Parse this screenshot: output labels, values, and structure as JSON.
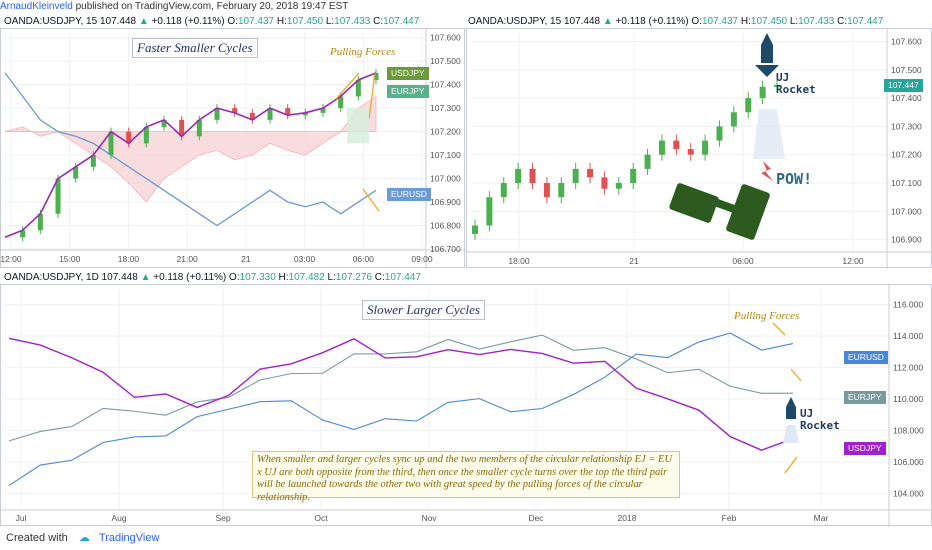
{
  "header": {
    "author": "ArnaudKleinveld",
    "published": "published on TradingView.com, February 20, 2018 19:47 EST"
  },
  "panel1": {
    "legend": {
      "symbol": "OANDA:USDJPY, 15",
      "last": "107.448",
      "change": "+0.118 (+0.11%)",
      "o": "107.437",
      "h": "107.450",
      "l": "107.433",
      "c": "107.447"
    },
    "title": "Faster Smaller Cycles",
    "forces": "Pulling Forces",
    "tags": [
      {
        "label": "USDJPY",
        "color": "#6a9a3a"
      },
      {
        "label": "EURJPY",
        "color": "#5bb08a"
      },
      {
        "label": "EURUSD",
        "color": "#6a9ad8"
      }
    ],
    "xticks": [
      "12:00",
      "15:00",
      "18:00",
      "21:00",
      "21",
      "03:00",
      "06:00",
      "09:00"
    ],
    "yticks": [
      "107.600",
      "107.500",
      "107.400",
      "107.300",
      "107.200",
      "107.100",
      "107.000",
      "106.900",
      "106.800",
      "106.700"
    ]
  },
  "panel2": {
    "legend": {
      "symbol": "OANDA:USDJPY, 15",
      "last": "107.448",
      "change": "+0.118 (+0.11%)",
      "o": "107.437",
      "h": "107.450",
      "l": "107.433",
      "c": "107.447"
    },
    "price_tag": "107.447",
    "rocket_label_1": "UJ",
    "rocket_label_2": "Rocket",
    "pow": "POW!",
    "xticks": [
      "18:00",
      "21",
      "06:00",
      "12:00"
    ],
    "yticks": [
      "107.600",
      "107.500",
      "107.400",
      "107.300",
      "107.200",
      "107.100",
      "107.000",
      "106.900"
    ]
  },
  "panel3": {
    "legend": {
      "symbol": "OANDA:USDJPY, 1D",
      "last": "107.448",
      "change": "+0.118 (+0.11%)",
      "o": "107.330",
      "h": "107.482",
      "l": "107.276",
      "c": "107.447"
    },
    "title": "Slower Larger Cycles",
    "forces": "Pulling Forces",
    "tags": [
      {
        "label": "EURUSD",
        "color": "#4a86d8"
      },
      {
        "label": "EURJPY",
        "color": "#7a9aa0"
      },
      {
        "label": "USDJPY",
        "color": "#a020d0"
      }
    ],
    "rocket_label_1": "UJ",
    "rocket_label_2": "Rocket",
    "note": "When smaller and larger cycles sync up and the two members of the circular relationship EJ = EU x UJ are both opposite from the third, then once the smaller cycle turns over the top the third pair will be launched towards the other two with great speed by the pulling forces of the circular relationship.",
    "xticks": [
      "Jul",
      "Aug",
      "Sep",
      "Oct",
      "Nov",
      "Dec",
      "2018",
      "Feb",
      "Mar"
    ],
    "yticks": [
      "116.000",
      "114.000",
      "112.000",
      "110.000",
      "108.000",
      "106.000",
      "104.000"
    ]
  },
  "chart_data": [
    {
      "type": "line",
      "title": "Faster Smaller Cycles",
      "series": [
        {
          "name": "USDJPY",
          "values": [
            106.75,
            106.78,
            106.85,
            107.0,
            107.05,
            107.1,
            107.2,
            107.15,
            107.22,
            107.25,
            107.18,
            107.25,
            107.3,
            107.28,
            107.25,
            107.3,
            107.27,
            107.28,
            107.3,
            107.35,
            107.42,
            107.45
          ]
        },
        {
          "name": "EURJPY",
          "values": [
            107.2,
            107.22,
            107.18,
            107.2,
            107.15,
            107.1,
            107.05,
            106.98,
            106.9,
            107.0,
            107.05,
            107.1,
            107.12,
            107.08,
            107.1,
            107.15,
            107.12,
            107.1,
            107.15,
            107.2,
            107.3,
            107.35
          ]
        },
        {
          "name": "EURUSD",
          "values": [
            107.45,
            107.35,
            107.25,
            107.2,
            107.18,
            107.15,
            107.1,
            107.05,
            107.0,
            106.95,
            106.9,
            106.85,
            106.8,
            106.85,
            106.9,
            106.95,
            106.9,
            106.88,
            106.9,
            106.85,
            106.9,
            106.95
          ]
        }
      ],
      "ylim": [
        106.7,
        107.62
      ]
    },
    {
      "type": "candlestick",
      "series": [
        {
          "name": "USDJPY",
          "values": [
            106.95,
            107.05,
            107.1,
            107.15,
            107.1,
            107.05,
            107.1,
            107.15,
            107.12,
            107.08,
            107.1,
            107.15,
            107.2,
            107.25,
            107.22,
            107.2,
            107.25,
            107.3,
            107.35,
            107.4,
            107.44,
            107.447
          ]
        }
      ],
      "ylim": [
        106.86,
        107.63
      ]
    },
    {
      "type": "line",
      "title": "Slower Larger Cycles",
      "series": [
        {
          "name": "EURUSD",
          "values": [
            104.5,
            105.5,
            106.5,
            107.0,
            107.5,
            108.0,
            108.5,
            109.5,
            110.0,
            109.5,
            109.0,
            108.0,
            108.5,
            109.0,
            109.5,
            110.0,
            109.5,
            109.0,
            110.5,
            111.5,
            112.5,
            113.0,
            113.5,
            114.0,
            113.5,
            113.2
          ]
        },
        {
          "name": "EURJPY",
          "values": [
            107.0,
            108.0,
            108.5,
            109.0,
            109.5,
            109.0,
            109.5,
            110.5,
            111.0,
            111.5,
            112.0,
            112.5,
            113.0,
            113.2,
            113.4,
            113.5,
            113.6,
            113.8,
            113.5,
            113.0,
            112.5,
            112.0,
            111.5,
            111.0,
            110.5,
            110.0
          ]
        },
        {
          "name": "USDJPY",
          "values": [
            113.5,
            113.8,
            112.5,
            111.5,
            110.5,
            110.0,
            109.5,
            110.5,
            111.5,
            112.5,
            113.0,
            113.5,
            113.0,
            112.5,
            113.0,
            113.2,
            112.8,
            113.0,
            112.5,
            112.0,
            111.0,
            110.0,
            109.0,
            108.0,
            106.5,
            107.4
          ]
        }
      ],
      "ylim": [
        103.0,
        117.0
      ]
    }
  ],
  "footer": {
    "created_with": "Created with",
    "brand": "TradingView"
  }
}
